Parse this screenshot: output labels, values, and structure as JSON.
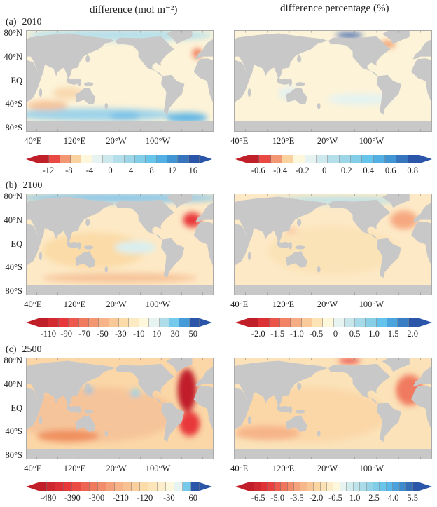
{
  "column_titles": {
    "left": "difference (mol m⁻²)",
    "right": "difference percentage (%)"
  },
  "lat_labels": [
    "80°N",
    "40°N",
    "EQ",
    "40°S",
    "80°S"
  ],
  "lon_labels": [
    "40°E",
    "120°E",
    "20°W",
    "100°W"
  ],
  "panels": [
    {
      "letter": "(a)",
      "year": "2010",
      "left_colorbar": {
        "labels": [
          "-12",
          "-8",
          "-4",
          "0",
          "4",
          "8",
          "12",
          "16"
        ],
        "count": 15,
        "neg_boxes": 5
      },
      "right_colorbar": {
        "labels": [
          "-0.6",
          "-0.4",
          "-0.2",
          "0",
          "0.2",
          "0.4",
          "0.6",
          "0.8"
        ],
        "count": 15,
        "neg_boxes": 5
      }
    },
    {
      "letter": "(b)",
      "year": "2100",
      "left_colorbar": {
        "labels": [
          "-110",
          "-90",
          "-70",
          "-50",
          "-30",
          "-10",
          "10",
          "30",
          "50"
        ],
        "count": 16,
        "neg_boxes": 11
      },
      "right_colorbar": {
        "labels": [
          "-2.0",
          "-1.5",
          "-1.0",
          "-0.5",
          "0",
          "0.5",
          "1.0",
          "1.5",
          "2.0"
        ],
        "count": 16,
        "neg_boxes": 8
      }
    },
    {
      "letter": "(c)",
      "year": "2500",
      "left_colorbar": {
        "labels": [
          "-480",
          "-390",
          "-300",
          "-210",
          "-120",
          "-30",
          "60"
        ],
        "count": 19,
        "neg_boxes": 16
      },
      "right_colorbar": {
        "labels": [
          "-6.5",
          "-5.0",
          "-3.5",
          "-2.0",
          "-0.5",
          "1.0",
          "2.5",
          "4.0",
          "5.5"
        ],
        "count": 26,
        "neg_boxes": 14
      }
    }
  ],
  "colors": {
    "land": "#c8c8c8",
    "neg_ramp": [
      "#c01f2a",
      "#e8373a",
      "#f07a5e",
      "#f6b488",
      "#fbdca8",
      "#fdf7dc"
    ],
    "pos_ramp": [
      "#e6f3f0",
      "#b9e1ea",
      "#8dd1e6",
      "#5cc1ee",
      "#3f8fd0",
      "#2a55a8"
    ]
  }
}
